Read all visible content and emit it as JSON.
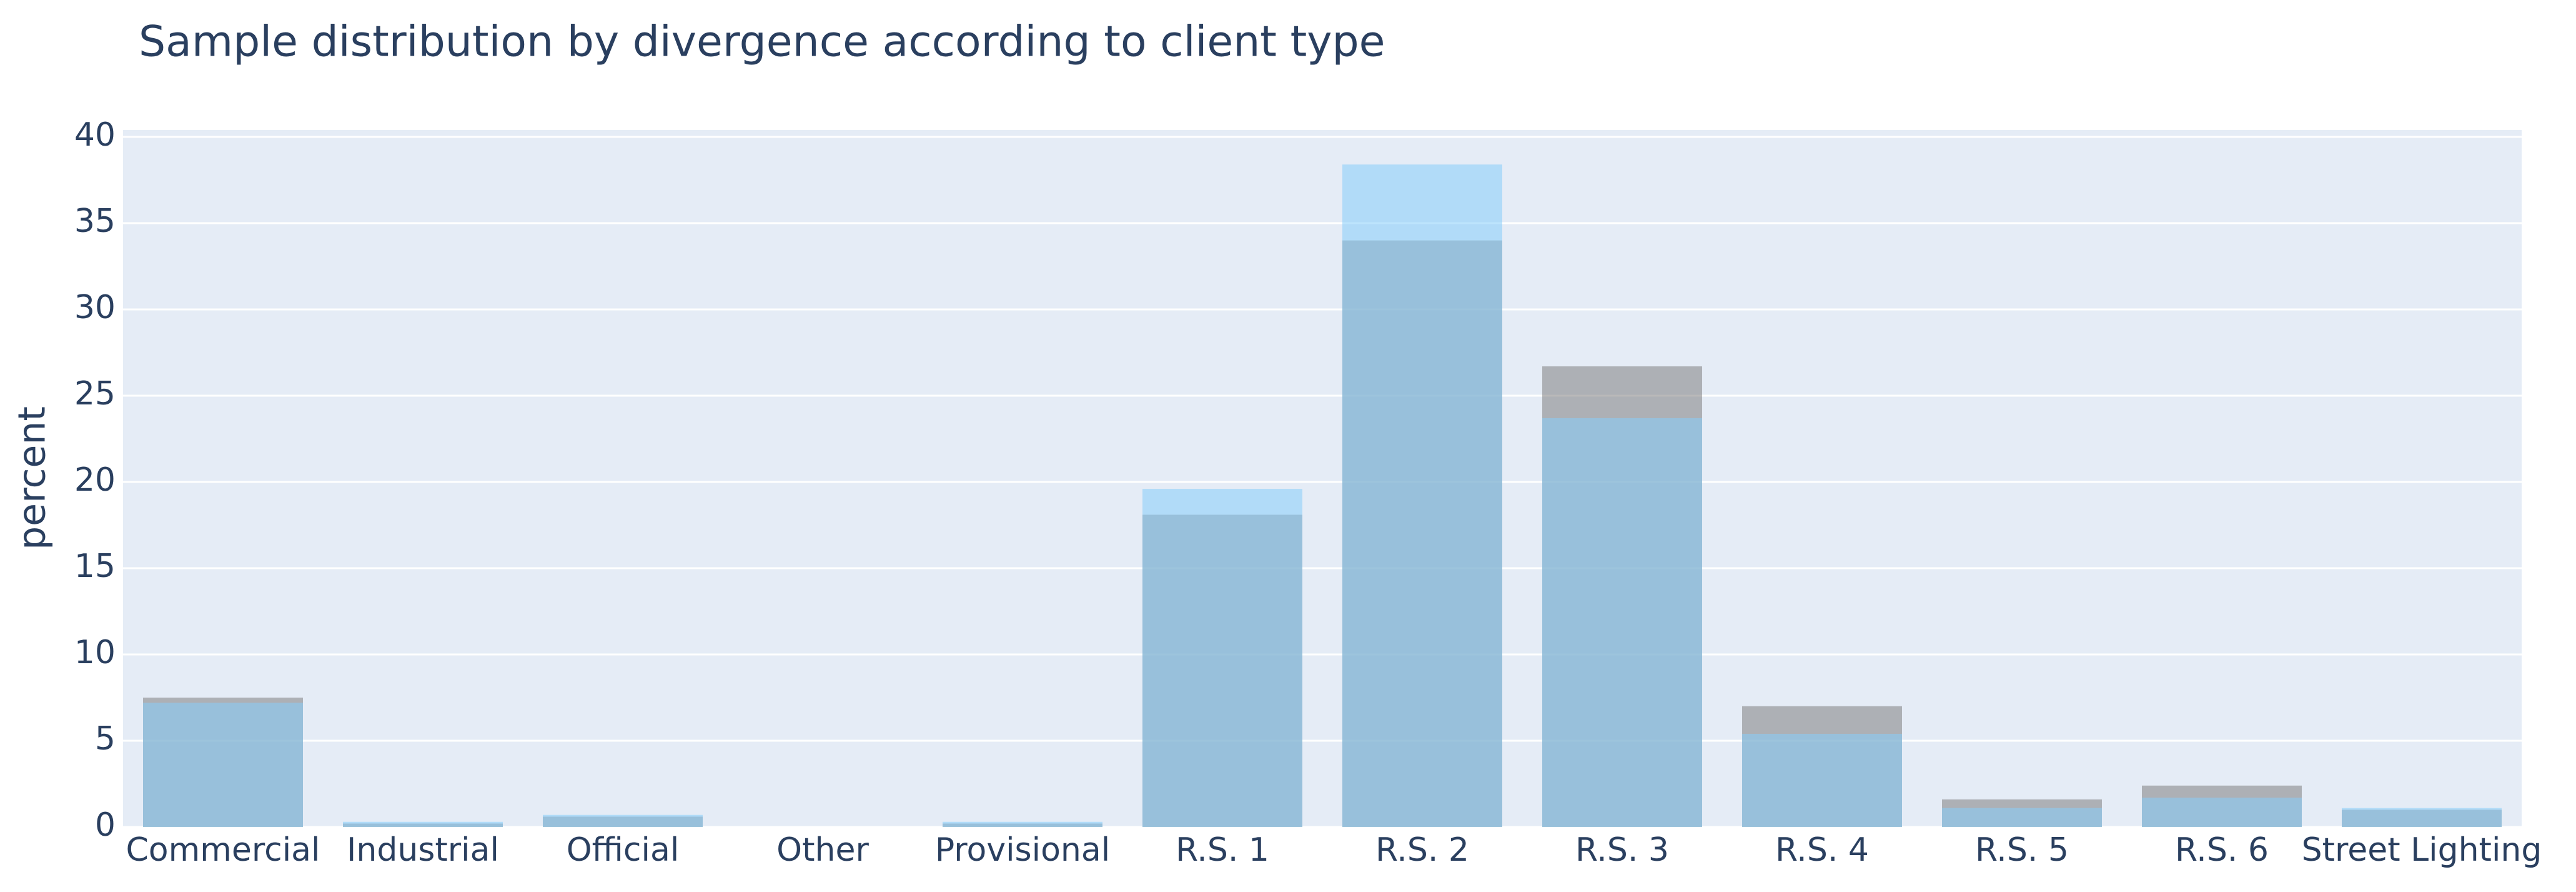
{
  "chart_data": {
    "type": "bar",
    "barmode": "overlay",
    "title": "Sample distribution by divergence according to client type",
    "y_label": "percent",
    "categories": [
      "Commercial",
      "Industrial",
      "Official",
      "Other",
      "Provisional",
      "R.S. 1",
      "R.S. 2",
      "R.S. 3",
      "R.S. 4",
      "R.S. 5",
      "R.S. 6",
      "Street Lighting"
    ],
    "series": [
      {
        "color": "#7f7f7f",
        "values": [
          7.5,
          0.2,
          0.6,
          0,
          0.2,
          18.1,
          34.0,
          26.7,
          7.0,
          1.6,
          2.4,
          1.0
        ]
      },
      {
        "color": "#87cefa",
        "values": [
          7.2,
          0.3,
          0.7,
          0,
          0.3,
          19.6,
          38.4,
          23.7,
          5.4,
          1.1,
          1.7,
          1.1
        ]
      }
    ],
    "ylim": [
      0,
      40.4
    ],
    "yticks": [
      0,
      5,
      10,
      15,
      20,
      25,
      30,
      35,
      40
    ],
    "grid": true
  }
}
